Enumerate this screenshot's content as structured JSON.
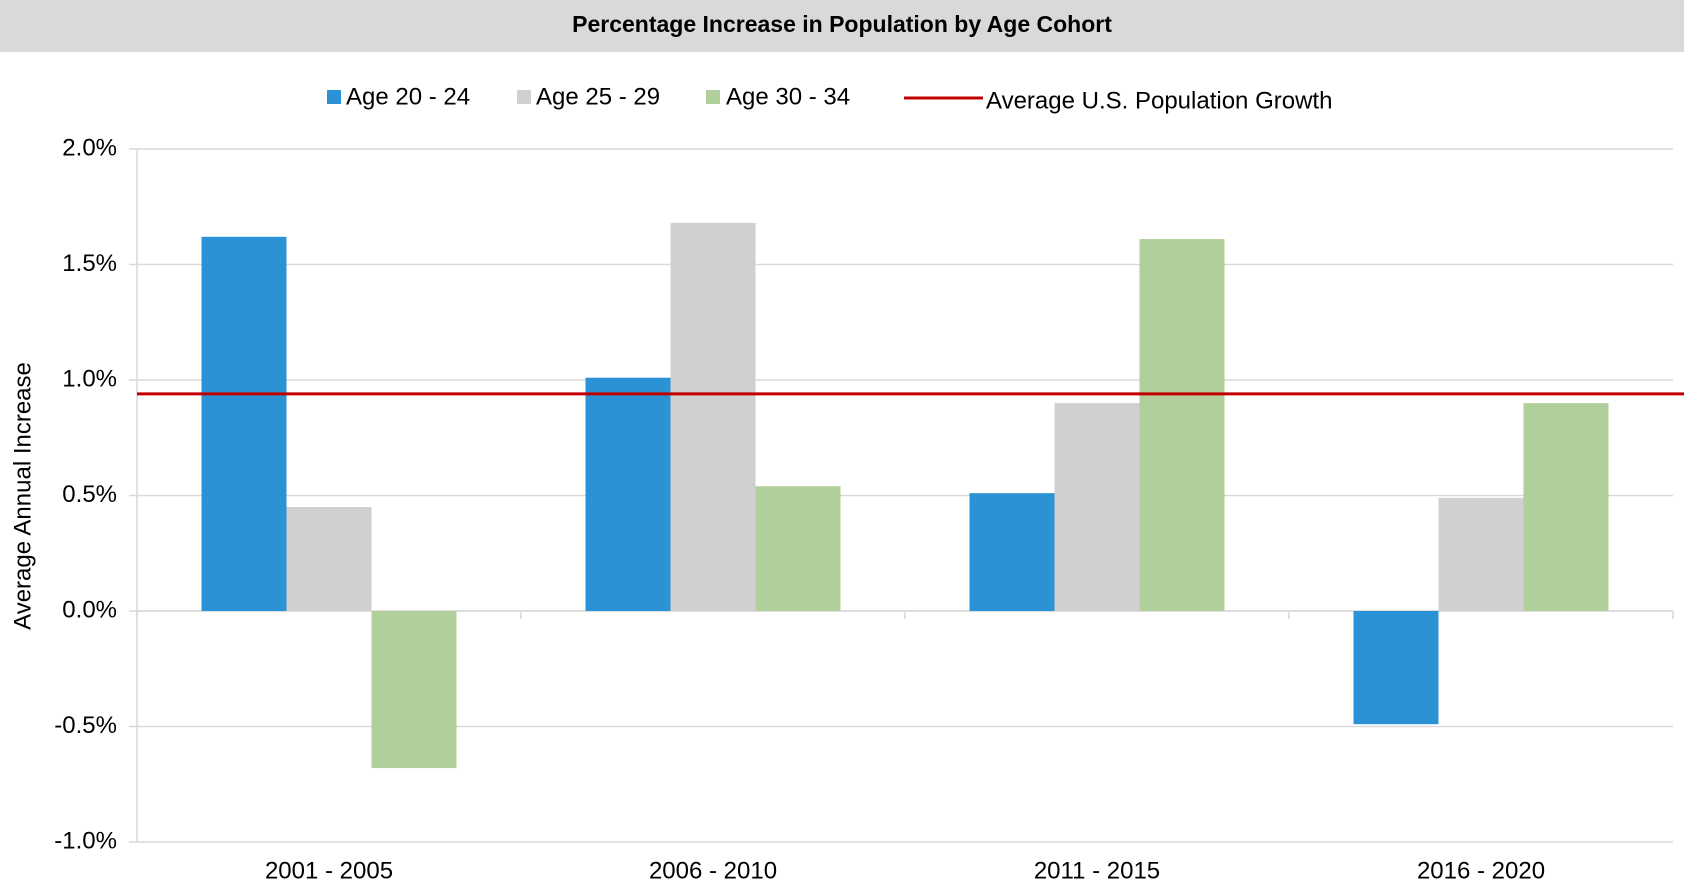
{
  "chart_data": {
    "type": "bar",
    "title": "Percentage Increase in Population by Age Cohort",
    "y_label": "Average Annual Increase",
    "categories": [
      "2001 - 2005",
      "2006 - 2010",
      "2011 - 2015",
      "2016 - 2020"
    ],
    "series": [
      {
        "name": "Age 20 - 24",
        "color": "#2b93d5",
        "values": [
          1.62,
          1.01,
          0.51,
          -0.49
        ]
      },
      {
        "name": "Age 25 - 29",
        "color": "#d0d0d0",
        "values": [
          0.45,
          1.68,
          0.9,
          0.49
        ]
      },
      {
        "name": "Age 30 - 34",
        "color": "#b0cf9a",
        "values": [
          -0.68,
          0.54,
          1.61,
          0.9
        ]
      }
    ],
    "reference_line": {
      "name": "Average U.S. Population Growth",
      "value": 0.94,
      "color": "#c00000"
    },
    "ylim": [
      -1.0,
      2.0
    ],
    "yticks": [
      {
        "value": -1.0,
        "label": "-1.0%"
      },
      {
        "value": -0.5,
        "label": "-0.5%"
      },
      {
        "value": 0.0,
        "label": "0.0%"
      },
      {
        "value": 0.5,
        "label": "0.5%"
      },
      {
        "value": 1.0,
        "label": "1.0%"
      },
      {
        "value": 1.5,
        "label": "1.5%"
      },
      {
        "value": 2.0,
        "label": "2.0%"
      }
    ],
    "grid": true
  }
}
